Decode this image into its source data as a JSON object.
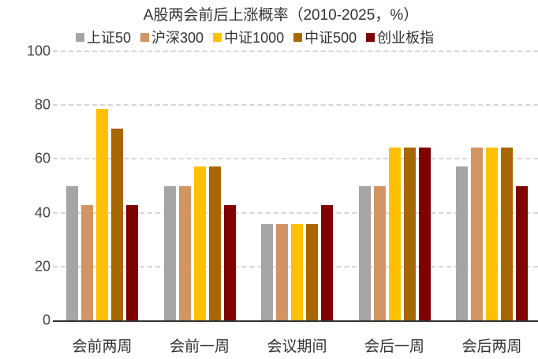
{
  "chart_data": {
    "type": "bar",
    "title": "A股两会前后上涨概率（2010-2025，%）",
    "xlabel": "",
    "ylabel": "",
    "ylim": [
      0,
      100
    ],
    "yticks": [
      0,
      20,
      40,
      60,
      80,
      100
    ],
    "grid": true,
    "legend_position": "top",
    "categories": [
      "会前两周",
      "会前一周",
      "会议期间",
      "会后一周",
      "会后两周"
    ],
    "series": [
      {
        "name": "上证50",
        "color": "#a5a5a5",
        "values": [
          50.0,
          50.0,
          35.7,
          50.0,
          57.1
        ]
      },
      {
        "name": "沪深300",
        "color": "#d19563",
        "values": [
          42.9,
          50.0,
          35.7,
          50.0,
          64.3
        ]
      },
      {
        "name": "中证1000",
        "color": "#ffc000",
        "values": [
          78.6,
          57.1,
          35.7,
          64.3,
          64.3
        ]
      },
      {
        "name": "中证500",
        "color": "#a86600",
        "values": [
          71.4,
          57.1,
          35.7,
          64.3,
          64.3
        ]
      },
      {
        "name": "创业板指",
        "color": "#7f0000",
        "values": [
          42.9,
          42.9,
          42.9,
          64.3,
          50.0
        ]
      }
    ]
  }
}
